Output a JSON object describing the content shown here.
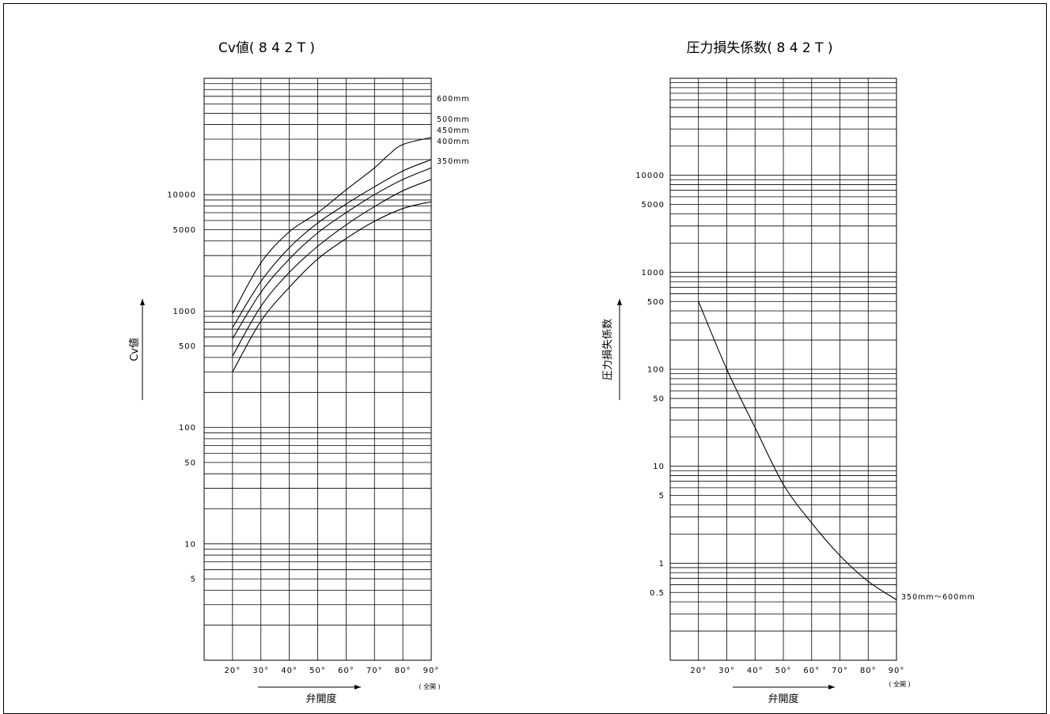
{
  "chart_data": [
    {
      "type": "line",
      "title": "Cv値( 8 4 2 T )",
      "ylabel": "Cv値",
      "xlabel": "弁開度",
      "x_note": "( 全開 )",
      "y_scale": "log",
      "ylim": [
        1,
        100000
      ],
      "xlim": [
        10,
        90
      ],
      "grid": true,
      "x_ticks": [
        "20°",
        "30°",
        "40°",
        "50°",
        "60°",
        "70°",
        "80°",
        "90°"
      ],
      "y_ticks": [
        "10000",
        "5000",
        "1000",
        "500",
        "100",
        "50",
        "10",
        "5"
      ],
      "series": [
        {
          "name": "600mm",
          "x": [
            20,
            30,
            40,
            50,
            60,
            70,
            75,
            80,
            90
          ],
          "y": [
            950,
            2600,
            4800,
            7000,
            11000,
            17000,
            22000,
            27000,
            31000
          ]
        },
        {
          "name": "500mm",
          "x": [
            20,
            30,
            40,
            50,
            60,
            70,
            80,
            90
          ],
          "y": [
            720,
            1800,
            3500,
            5700,
            8300,
            11700,
            16000,
            20000
          ]
        },
        {
          "name": "450mm",
          "x": [
            20,
            30,
            40,
            50,
            60,
            70,
            80,
            90
          ],
          "y": [
            580,
            1450,
            2800,
            4700,
            7000,
            10000,
            13500,
            17000
          ]
        },
        {
          "name": "400mm",
          "x": [
            20,
            30,
            40,
            50,
            60,
            70,
            80,
            90
          ],
          "y": [
            410,
            1100,
            2150,
            3600,
            5500,
            7900,
            10800,
            13500
          ]
        },
        {
          "name": "350mm",
          "x": [
            20,
            30,
            40,
            50,
            60,
            70,
            80,
            90
          ],
          "y": [
            300,
            820,
            1600,
            2800,
            4200,
            5900,
            7600,
            8700
          ]
        }
      ]
    },
    {
      "type": "line",
      "title": "圧力損失係数( 8 4 2 T )",
      "ylabel": "圧力損失係数",
      "xlabel": "弁開度",
      "x_note": "( 全開 )",
      "y_scale": "log",
      "ylim": [
        0.1,
        100000
      ],
      "xlim": [
        10,
        90
      ],
      "grid": true,
      "x_ticks": [
        "20°",
        "30°",
        "40°",
        "50°",
        "60°",
        "70°",
        "80°",
        "90°"
      ],
      "y_ticks": [
        "10000",
        "5000",
        "1000",
        "500",
        "100",
        "50",
        "10",
        "5",
        "1",
        "0.5"
      ],
      "series": [
        {
          "name": "350mm～600mm",
          "x": [
            20,
            30,
            40,
            50,
            60,
            70,
            80,
            90
          ],
          "y": [
            500,
            100,
            25,
            6.5,
            2.6,
            1.2,
            0.65,
            0.42
          ]
        }
      ]
    }
  ]
}
